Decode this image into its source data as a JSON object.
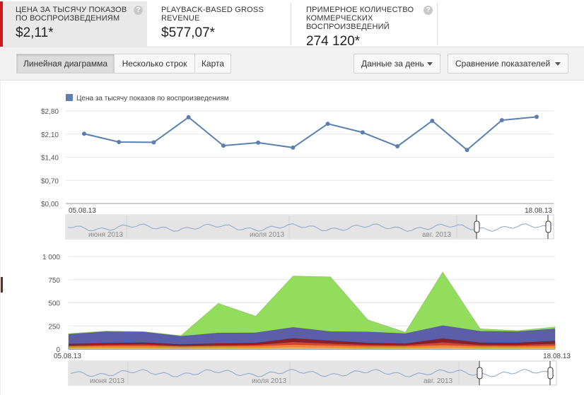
{
  "metrics": [
    {
      "title": "ЦЕНА ЗА ТЫСЯЧУ ПОКАЗОВ ПО ВОСПРОИЗВЕДЕНИЯМ",
      "value": "$2,11*",
      "help": "?"
    },
    {
      "title": "PLAYBACK-BASED GROSS REVENUE",
      "value": "$577,07*",
      "help": "?"
    },
    {
      "title": "ПРИМЕРНОЕ КОЛИЧЕСТВО КОММЕРЧЕСКИХ ВОСПРОИЗВЕДЕНИЙ",
      "value": "274 120*",
      "help": "?"
    }
  ],
  "toolbar": {
    "view_tabs": [
      "Линейная диаграмма",
      "Несколько строк",
      "Карта"
    ],
    "granularity": "Данные за день",
    "compare": "Сравнение показателей"
  },
  "timeline": {
    "months": [
      "июня 2013",
      "июля 2013",
      "авг. 2013"
    ]
  },
  "colors": {
    "line": "#5b7fb0",
    "green": "#92de5c",
    "purple": "#5c5ea8",
    "darkred": "#8b1f2a",
    "red": "#d0463a",
    "orange": "#ee8a3a",
    "yellow": "#f2b84b",
    "accent": "#cc181e"
  },
  "chart_data": [
    {
      "type": "line",
      "legend": "Цена за тысячу показов по воспроизведениям",
      "x_start": "05.08.13",
      "x_end": "18.08.13",
      "y_ticks": [
        "$2,80",
        "$2,10",
        "$1,40",
        "$0,70",
        "$0,00"
      ],
      "ylim": [
        0,
        2.8
      ],
      "series": [
        {
          "name": "Цена за тысячу показов по воспроизведениям",
          "values": [
            2.11,
            1.86,
            1.85,
            2.61,
            1.75,
            1.84,
            1.69,
            2.41,
            2.15,
            1.73,
            2.5,
            1.62,
            2.52,
            2.62
          ]
        }
      ]
    },
    {
      "type": "area",
      "stacked": true,
      "x_start": "05.08.13",
      "x_end": "18.08.13",
      "y_ticks": [
        "1 000",
        "750",
        "500",
        "250",
        "0"
      ],
      "ylim": [
        0,
        1000
      ],
      "series": [
        {
          "color": "yellow",
          "values": [
            15,
            18,
            18,
            14,
            16,
            16,
            22,
            18,
            14,
            16,
            20,
            15,
            16,
            20
          ]
        },
        {
          "color": "orange",
          "values": [
            15,
            16,
            18,
            14,
            16,
            18,
            25,
            22,
            18,
            16,
            24,
            18,
            16,
            18
          ]
        },
        {
          "color": "red",
          "values": [
            10,
            12,
            14,
            8,
            10,
            12,
            30,
            20,
            14,
            10,
            30,
            12,
            12,
            20
          ]
        },
        {
          "color": "darkred",
          "values": [
            15,
            18,
            20,
            14,
            18,
            20,
            38,
            30,
            20,
            16,
            40,
            24,
            24,
            30
          ]
        },
        {
          "color": "purple",
          "values": [
            105,
            125,
            115,
            90,
            115,
            110,
            120,
            100,
            120,
            110,
            140,
            125,
            122,
            132
          ]
        },
        {
          "color": "green",
          "values": [
            8,
            6,
            5,
            5,
            320,
            180,
            555,
            590,
            130,
            15,
            580,
            25,
            10,
            20
          ]
        }
      ]
    }
  ]
}
